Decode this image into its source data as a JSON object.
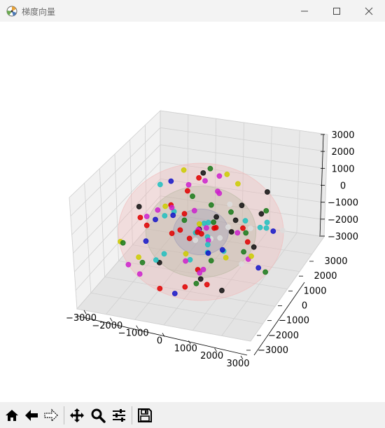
{
  "window": {
    "title": "梯度向量"
  },
  "toolbar": {
    "tools": [
      "home-icon",
      "back-arrow-icon",
      "forward-arrow-icon",
      "pan-icon",
      "zoom-icon",
      "configure-subplots-icon",
      "save-icon"
    ]
  },
  "chart_data": {
    "type": "scatter3d",
    "title": "",
    "x_ticks": [
      "−3000",
      "−2000",
      "−1000",
      "0",
      "1000",
      "2000",
      "3000"
    ],
    "y_ticks": [
      "3000",
      "2000",
      "1000",
      "0",
      "−1000",
      "−2000",
      "−3000"
    ],
    "z_ticks": [
      "3000",
      "2000",
      "1000",
      "0",
      "−1000",
      "−2000",
      "−3000"
    ],
    "xlim": [
      -3000,
      3000
    ],
    "ylim": [
      -3000,
      3000
    ],
    "zlim": [
      -3000,
      3000
    ],
    "grid": true,
    "surfaces": [
      {
        "shape": "sphere",
        "radius": 3000,
        "color": "#f2b8b8"
      },
      {
        "shape": "sphere",
        "radius": 2000,
        "color": "#b8b8a0"
      },
      {
        "shape": "sphere",
        "radius": 1000,
        "color": "#9a9ab8"
      }
    ],
    "point_colors": [
      "#e00000",
      "#1a7a1a",
      "#1515c8",
      "#cccc00",
      "#cc22cc",
      "#20c0c0",
      "#111111",
      "#dddddd"
    ]
  }
}
